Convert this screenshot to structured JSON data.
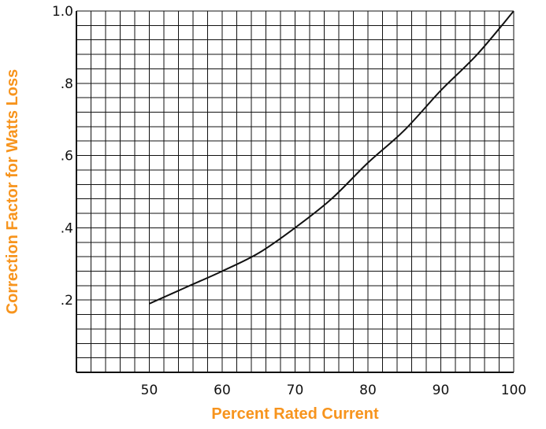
{
  "chart_data": {
    "type": "line",
    "xlabel": "Percent Rated Current",
    "ylabel": "Correction Factor for Watts Loss",
    "xlim": [
      40,
      100
    ],
    "ylim": [
      0,
      1.0
    ],
    "x_ticks": [
      "50",
      "60",
      "70",
      "80",
      "90",
      "100"
    ],
    "x_tick_values": [
      50,
      60,
      70,
      80,
      90,
      100
    ],
    "y_ticks": [
      ".2",
      ".4",
      ".6",
      ".8",
      "1.0"
    ],
    "y_tick_values": [
      0.2,
      0.4,
      0.6,
      0.8,
      1.0
    ],
    "grid": true,
    "grid_step_x": 2,
    "grid_step_y": 0.04,
    "series": [
      {
        "x": [
          50,
          55,
          60,
          65,
          70,
          75,
          80,
          85,
          90,
          95,
          100
        ],
        "y": [
          0.19,
          0.235,
          0.28,
          0.33,
          0.4,
          0.48,
          0.58,
          0.67,
          0.78,
          0.88,
          1.0
        ]
      }
    ]
  },
  "colors": {
    "axis_title": "#f7941d",
    "line": "#111111",
    "grid": "#111111",
    "background": "#ffffff"
  }
}
